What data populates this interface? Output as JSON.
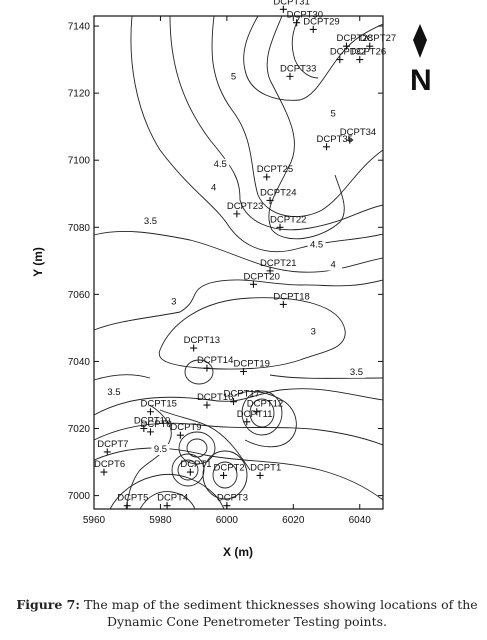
{
  "caption": {
    "label": "Figure 7:",
    "text": "The map of the sediment thicknesses showing locations of the Dynamic Cone Penetrometer Testing points."
  },
  "chart_data": {
    "type": "contour",
    "xlabel": "X (m)",
    "ylabel": "Y (m)",
    "xlim": [
      5960,
      6047
    ],
    "ylim": [
      6996,
      7143
    ],
    "xticks": [
      5960,
      5980,
      6000,
      6020,
      6040
    ],
    "yticks": [
      7000,
      7020,
      7040,
      7060,
      7080,
      7100,
      7120,
      7140
    ],
    "north_arrow": "N",
    "contour_labels": [
      {
        "value": "5",
        "x": 6002,
        "y": 7124
      },
      {
        "value": "5",
        "x": 6032,
        "y": 7113
      },
      {
        "value": "4.5",
        "x": 5998,
        "y": 7098
      },
      {
        "value": "4",
        "x": 5996,
        "y": 7091
      },
      {
        "value": "3.5",
        "x": 5977,
        "y": 7081
      },
      {
        "value": "4.5",
        "x": 6027,
        "y": 7074
      },
      {
        "value": "4",
        "x": 6032,
        "y": 7068
      },
      {
        "value": "3",
        "x": 5984,
        "y": 7057
      },
      {
        "value": "3",
        "x": 6026,
        "y": 7048
      },
      {
        "value": "3.5",
        "x": 6039,
        "y": 7036
      },
      {
        "value": "3.5",
        "x": 5966,
        "y": 7030
      },
      {
        "value": "9.5",
        "x": 5980,
        "y": 7013
      }
    ],
    "points": [
      {
        "name": "DCPT31",
        "x": 6017,
        "y": 7145
      },
      {
        "name": "DCPT30",
        "x": 6021,
        "y": 7141
      },
      {
        "name": "DCPT29",
        "x": 6026,
        "y": 7139
      },
      {
        "name": "DCPT28",
        "x": 6036,
        "y": 7134
      },
      {
        "name": "DCPT27",
        "x": 6043,
        "y": 7134
      },
      {
        "name": "DCPT26",
        "x": 6040,
        "y": 7130
      },
      {
        "name": "DCPT32",
        "x": 6034,
        "y": 7130
      },
      {
        "name": "DCPT33",
        "x": 6019,
        "y": 7125
      },
      {
        "name": "DCPT34",
        "x": 6037,
        "y": 7106
      },
      {
        "name": "DCPT35",
        "x": 6030,
        "y": 7104
      },
      {
        "name": "DCPT25",
        "x": 6012,
        "y": 7095
      },
      {
        "name": "DCPT24",
        "x": 6013,
        "y": 7088
      },
      {
        "name": "DCPT23",
        "x": 6003,
        "y": 7084
      },
      {
        "name": "DCPT22",
        "x": 6016,
        "y": 7080
      },
      {
        "name": "DCPT21",
        "x": 6013,
        "y": 7067
      },
      {
        "name": "DCPT20",
        "x": 6008,
        "y": 7063
      },
      {
        "name": "DCPT18",
        "x": 6017,
        "y": 7057
      },
      {
        "name": "DCPT13",
        "x": 5990,
        "y": 7044
      },
      {
        "name": "DCPT14",
        "x": 5994,
        "y": 7038
      },
      {
        "name": "DCPT19",
        "x": 6005,
        "y": 7037
      },
      {
        "name": "DCPT17",
        "x": 6002,
        "y": 7028
      },
      {
        "name": "DCPT15",
        "x": 5977,
        "y": 7025
      },
      {
        "name": "DCPT16",
        "x": 5994,
        "y": 7027
      },
      {
        "name": "DCPT12",
        "x": 6009,
        "y": 7025
      },
      {
        "name": "DCPT11",
        "x": 6006,
        "y": 7022
      },
      {
        "name": "DCPT10",
        "x": 5975,
        "y": 7020
      },
      {
        "name": "DCPT8",
        "x": 5977,
        "y": 7019
      },
      {
        "name": "DCPT9",
        "x": 5986,
        "y": 7018
      },
      {
        "name": "DCPT7",
        "x": 5964,
        "y": 7013
      },
      {
        "name": "DCPT6",
        "x": 5963,
        "y": 7007
      },
      {
        "name": "DCPT1",
        "x": 6010,
        "y": 7006
      },
      {
        "name": "DCPT1",
        "x": 5989,
        "y": 7007
      },
      {
        "name": "DCPT2",
        "x": 5999,
        "y": 7006
      },
      {
        "name": "DCPT5",
        "x": 5970,
        "y": 6997
      },
      {
        "name": "DCPT4",
        "x": 5982,
        "y": 6997
      },
      {
        "name": "DCPT3",
        "x": 6000,
        "y": 6997
      }
    ]
  }
}
